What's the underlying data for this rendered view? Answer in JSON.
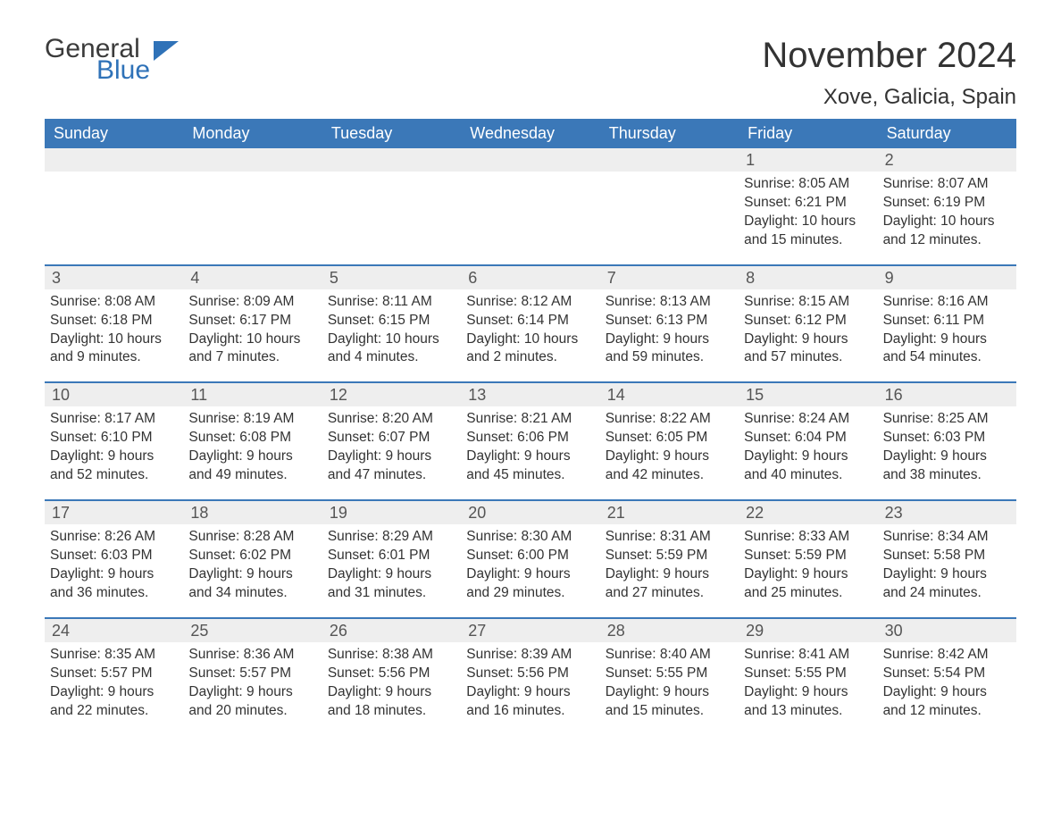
{
  "branding": {
    "logo_general": "General",
    "logo_blue": "Blue",
    "logo_triangle_color": "#2f72b8"
  },
  "header": {
    "month_title": "November 2024",
    "location": "Xove, Galicia, Spain"
  },
  "colors": {
    "header_bg": "#3b78b8",
    "header_text": "#ffffff",
    "daynum_bg": "#eeeeee",
    "week_border": "#3b78b8",
    "body_text": "#333333"
  },
  "day_names": [
    "Sunday",
    "Monday",
    "Tuesday",
    "Wednesday",
    "Thursday",
    "Friday",
    "Saturday"
  ],
  "weeks": [
    [
      {
        "day": "",
        "sunrise": "",
        "sunset": "",
        "daylight1": "",
        "daylight2": ""
      },
      {
        "day": "",
        "sunrise": "",
        "sunset": "",
        "daylight1": "",
        "daylight2": ""
      },
      {
        "day": "",
        "sunrise": "",
        "sunset": "",
        "daylight1": "",
        "daylight2": ""
      },
      {
        "day": "",
        "sunrise": "",
        "sunset": "",
        "daylight1": "",
        "daylight2": ""
      },
      {
        "day": "",
        "sunrise": "",
        "sunset": "",
        "daylight1": "",
        "daylight2": ""
      },
      {
        "day": "1",
        "sunrise": "Sunrise: 8:05 AM",
        "sunset": "Sunset: 6:21 PM",
        "daylight1": "Daylight: 10 hours",
        "daylight2": "and 15 minutes."
      },
      {
        "day": "2",
        "sunrise": "Sunrise: 8:07 AM",
        "sunset": "Sunset: 6:19 PM",
        "daylight1": "Daylight: 10 hours",
        "daylight2": "and 12 minutes."
      }
    ],
    [
      {
        "day": "3",
        "sunrise": "Sunrise: 8:08 AM",
        "sunset": "Sunset: 6:18 PM",
        "daylight1": "Daylight: 10 hours",
        "daylight2": "and 9 minutes."
      },
      {
        "day": "4",
        "sunrise": "Sunrise: 8:09 AM",
        "sunset": "Sunset: 6:17 PM",
        "daylight1": "Daylight: 10 hours",
        "daylight2": "and 7 minutes."
      },
      {
        "day": "5",
        "sunrise": "Sunrise: 8:11 AM",
        "sunset": "Sunset: 6:15 PM",
        "daylight1": "Daylight: 10 hours",
        "daylight2": "and 4 minutes."
      },
      {
        "day": "6",
        "sunrise": "Sunrise: 8:12 AM",
        "sunset": "Sunset: 6:14 PM",
        "daylight1": "Daylight: 10 hours",
        "daylight2": "and 2 minutes."
      },
      {
        "day": "7",
        "sunrise": "Sunrise: 8:13 AM",
        "sunset": "Sunset: 6:13 PM",
        "daylight1": "Daylight: 9 hours",
        "daylight2": "and 59 minutes."
      },
      {
        "day": "8",
        "sunrise": "Sunrise: 8:15 AM",
        "sunset": "Sunset: 6:12 PM",
        "daylight1": "Daylight: 9 hours",
        "daylight2": "and 57 minutes."
      },
      {
        "day": "9",
        "sunrise": "Sunrise: 8:16 AM",
        "sunset": "Sunset: 6:11 PM",
        "daylight1": "Daylight: 9 hours",
        "daylight2": "and 54 minutes."
      }
    ],
    [
      {
        "day": "10",
        "sunrise": "Sunrise: 8:17 AM",
        "sunset": "Sunset: 6:10 PM",
        "daylight1": "Daylight: 9 hours",
        "daylight2": "and 52 minutes."
      },
      {
        "day": "11",
        "sunrise": "Sunrise: 8:19 AM",
        "sunset": "Sunset: 6:08 PM",
        "daylight1": "Daylight: 9 hours",
        "daylight2": "and 49 minutes."
      },
      {
        "day": "12",
        "sunrise": "Sunrise: 8:20 AM",
        "sunset": "Sunset: 6:07 PM",
        "daylight1": "Daylight: 9 hours",
        "daylight2": "and 47 minutes."
      },
      {
        "day": "13",
        "sunrise": "Sunrise: 8:21 AM",
        "sunset": "Sunset: 6:06 PM",
        "daylight1": "Daylight: 9 hours",
        "daylight2": "and 45 minutes."
      },
      {
        "day": "14",
        "sunrise": "Sunrise: 8:22 AM",
        "sunset": "Sunset: 6:05 PM",
        "daylight1": "Daylight: 9 hours",
        "daylight2": "and 42 minutes."
      },
      {
        "day": "15",
        "sunrise": "Sunrise: 8:24 AM",
        "sunset": "Sunset: 6:04 PM",
        "daylight1": "Daylight: 9 hours",
        "daylight2": "and 40 minutes."
      },
      {
        "day": "16",
        "sunrise": "Sunrise: 8:25 AM",
        "sunset": "Sunset: 6:03 PM",
        "daylight1": "Daylight: 9 hours",
        "daylight2": "and 38 minutes."
      }
    ],
    [
      {
        "day": "17",
        "sunrise": "Sunrise: 8:26 AM",
        "sunset": "Sunset: 6:03 PM",
        "daylight1": "Daylight: 9 hours",
        "daylight2": "and 36 minutes."
      },
      {
        "day": "18",
        "sunrise": "Sunrise: 8:28 AM",
        "sunset": "Sunset: 6:02 PM",
        "daylight1": "Daylight: 9 hours",
        "daylight2": "and 34 minutes."
      },
      {
        "day": "19",
        "sunrise": "Sunrise: 8:29 AM",
        "sunset": "Sunset: 6:01 PM",
        "daylight1": "Daylight: 9 hours",
        "daylight2": "and 31 minutes."
      },
      {
        "day": "20",
        "sunrise": "Sunrise: 8:30 AM",
        "sunset": "Sunset: 6:00 PM",
        "daylight1": "Daylight: 9 hours",
        "daylight2": "and 29 minutes."
      },
      {
        "day": "21",
        "sunrise": "Sunrise: 8:31 AM",
        "sunset": "Sunset: 5:59 PM",
        "daylight1": "Daylight: 9 hours",
        "daylight2": "and 27 minutes."
      },
      {
        "day": "22",
        "sunrise": "Sunrise: 8:33 AM",
        "sunset": "Sunset: 5:59 PM",
        "daylight1": "Daylight: 9 hours",
        "daylight2": "and 25 minutes."
      },
      {
        "day": "23",
        "sunrise": "Sunrise: 8:34 AM",
        "sunset": "Sunset: 5:58 PM",
        "daylight1": "Daylight: 9 hours",
        "daylight2": "and 24 minutes."
      }
    ],
    [
      {
        "day": "24",
        "sunrise": "Sunrise: 8:35 AM",
        "sunset": "Sunset: 5:57 PM",
        "daylight1": "Daylight: 9 hours",
        "daylight2": "and 22 minutes."
      },
      {
        "day": "25",
        "sunrise": "Sunrise: 8:36 AM",
        "sunset": "Sunset: 5:57 PM",
        "daylight1": "Daylight: 9 hours",
        "daylight2": "and 20 minutes."
      },
      {
        "day": "26",
        "sunrise": "Sunrise: 8:38 AM",
        "sunset": "Sunset: 5:56 PM",
        "daylight1": "Daylight: 9 hours",
        "daylight2": "and 18 minutes."
      },
      {
        "day": "27",
        "sunrise": "Sunrise: 8:39 AM",
        "sunset": "Sunset: 5:56 PM",
        "daylight1": "Daylight: 9 hours",
        "daylight2": "and 16 minutes."
      },
      {
        "day": "28",
        "sunrise": "Sunrise: 8:40 AM",
        "sunset": "Sunset: 5:55 PM",
        "daylight1": "Daylight: 9 hours",
        "daylight2": "and 15 minutes."
      },
      {
        "day": "29",
        "sunrise": "Sunrise: 8:41 AM",
        "sunset": "Sunset: 5:55 PM",
        "daylight1": "Daylight: 9 hours",
        "daylight2": "and 13 minutes."
      },
      {
        "day": "30",
        "sunrise": "Sunrise: 8:42 AM",
        "sunset": "Sunset: 5:54 PM",
        "daylight1": "Daylight: 9 hours",
        "daylight2": "and 12 minutes."
      }
    ]
  ]
}
